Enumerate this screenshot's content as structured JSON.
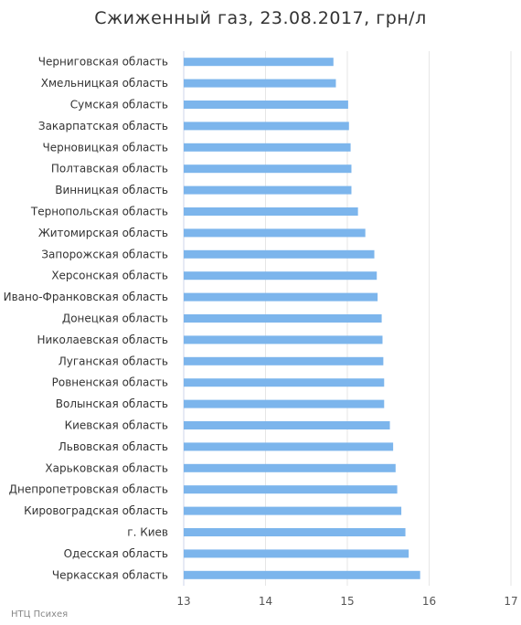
{
  "chart_data": {
    "type": "bar",
    "orientation": "horizontal",
    "title": "Сжиженный газ, 23.08.2017, грн/л",
    "xlim": [
      13,
      17
    ],
    "x_ticks": [
      "13",
      "14",
      "15",
      "16",
      "17"
    ],
    "grid": "vertical",
    "bar_color": "#7cb5ec",
    "categories": [
      "Черниговская область",
      "Хмельницкая область",
      "Сумская область",
      "Закарпатская область",
      "Черновицкая область",
      "Полтавская область",
      "Винницкая область",
      "Тернопольская область",
      "Житомирская область",
      "Запорожская область",
      "Херсонская область",
      "Ивано-Франковская область",
      "Донецкая область",
      "Николаевская область",
      "Луганская область",
      "Ровненская область",
      "Волынская область",
      "Киевская область",
      "Львовская область",
      "Харьковская область",
      "Днепропетровская область",
      "Кировоградская область",
      "г. Киев",
      "Одесская область",
      "Черкасская область"
    ],
    "values": [
      14.83,
      14.86,
      15.01,
      15.02,
      15.04,
      15.05,
      15.05,
      15.13,
      15.22,
      15.33,
      15.36,
      15.37,
      15.42,
      15.43,
      15.44,
      15.45,
      15.45,
      15.52,
      15.56,
      15.59,
      15.61,
      15.66,
      15.71,
      15.75,
      15.89
    ]
  },
  "credit": "НТЦ Психея"
}
